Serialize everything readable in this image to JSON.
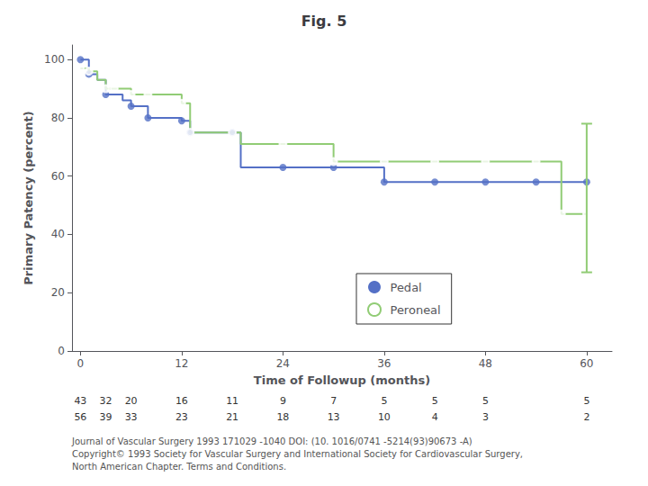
{
  "chart_data": {
    "type": "line",
    "title": "Fig. 5",
    "xlabel": "Time of Followup (months)",
    "ylabel": "Primary Patency (percent)",
    "xlim": [
      -1,
      63
    ],
    "ylim": [
      0,
      105
    ],
    "xticks": [
      0,
      12,
      24,
      36,
      48,
      60
    ],
    "yticks": [
      0,
      20,
      40,
      60,
      80,
      100
    ],
    "grid": false,
    "legend": "bottom",
    "line_style": "step",
    "series": [
      {
        "name": "Pedal",
        "color": "#5470c6",
        "marker": "circle",
        "x": [
          0,
          1,
          2,
          3,
          5,
          6,
          8,
          12,
          13,
          18,
          19,
          24,
          30,
          36,
          42,
          48,
          54,
          60
        ],
        "values": [
          100,
          95,
          93,
          88,
          86,
          84,
          80,
          79,
          75,
          75,
          63,
          63,
          63,
          58,
          58,
          58,
          58,
          58
        ],
        "markers_x": [
          0,
          1,
          3,
          6,
          8,
          12,
          13,
          18,
          24,
          30,
          36,
          42,
          48,
          54,
          60
        ],
        "markers_y": [
          100,
          95,
          88,
          84,
          80,
          79,
          75,
          75,
          63,
          63,
          58,
          58,
          58,
          58,
          58
        ],
        "at_risk": [
          43,
          32,
          20,
          16,
          11,
          9,
          7,
          5,
          5,
          5,
          5
        ]
      },
      {
        "name": "Peroneal",
        "color": "#91cc75",
        "marker": "open_circle",
        "x": [
          0,
          1,
          2,
          3,
          4,
          6,
          8,
          12,
          13,
          18,
          19,
          24,
          30,
          36,
          42,
          48,
          54,
          57,
          60
        ],
        "values": [
          97,
          96,
          93,
          90,
          90,
          88,
          88,
          85,
          75,
          75,
          71,
          71,
          65,
          65,
          65,
          65,
          65,
          47,
          47
        ],
        "markers_x": [
          0,
          1,
          3,
          4,
          6,
          8,
          12,
          13,
          18,
          24,
          30,
          36,
          42,
          48,
          54,
          57,
          60
        ],
        "markers_y": [
          97,
          96,
          90,
          90,
          88,
          88,
          85,
          75,
          75,
          71,
          65,
          65,
          65,
          65,
          65,
          47,
          47
        ],
        "at_risk": [
          56,
          39,
          33,
          23,
          21,
          18,
          13,
          10,
          4,
          3,
          2
        ],
        "error_bars": [
          {
            "x": 60,
            "lower": 27,
            "upper": 78
          }
        ]
      }
    ],
    "at_risk_x": [
      0,
      3,
      6,
      12,
      18,
      24,
      30,
      36,
      42,
      48,
      60
    ],
    "annotations": [
      "Journal of Vascular Surgery 1993 171029 -1040 DOI: (10. 1016/0741 -5214(93)90673 -A)",
      "Copyright© 1993 Society for Vascular Surgery and International Society for Cardiovascular Surgery,",
      "North American Chapter. Terms and Conditions."
    ]
  }
}
